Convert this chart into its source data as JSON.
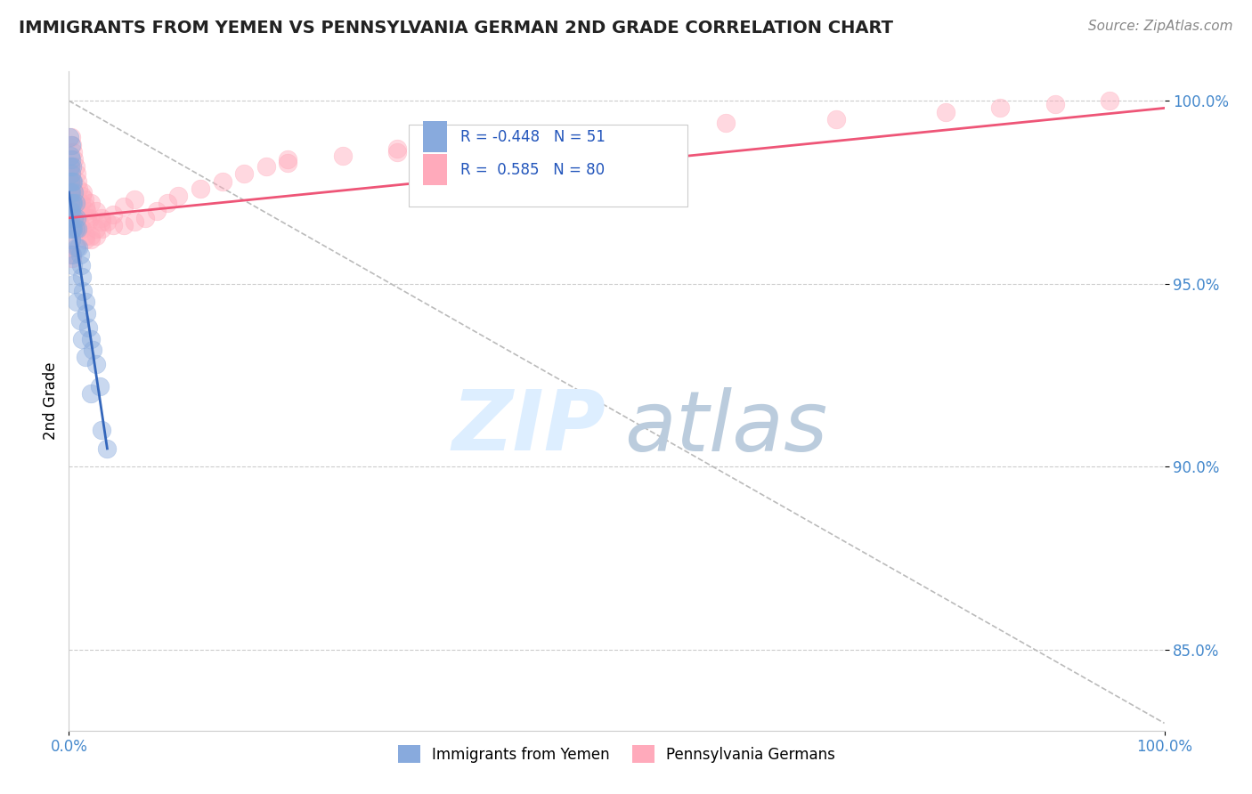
{
  "title": "IMMIGRANTS FROM YEMEN VS PENNSYLVANIA GERMAN 2ND GRADE CORRELATION CHART",
  "source": "Source: ZipAtlas.com",
  "ylabel": "2nd Grade",
  "legend_blue_r": "-0.448",
  "legend_blue_n": "51",
  "legend_pink_r": "0.585",
  "legend_pink_n": "80",
  "blue_scatter_x": [
    0.0005,
    0.001,
    0.001,
    0.001,
    0.001,
    0.001,
    0.001,
    0.001,
    0.002,
    0.002,
    0.002,
    0.002,
    0.002,
    0.002,
    0.003,
    0.003,
    0.003,
    0.003,
    0.004,
    0.004,
    0.004,
    0.005,
    0.005,
    0.006,
    0.006,
    0.007,
    0.007,
    0.008,
    0.009,
    0.01,
    0.011,
    0.012,
    0.013,
    0.015,
    0.016,
    0.018,
    0.02,
    0.022,
    0.025,
    0.028,
    0.002,
    0.003,
    0.004,
    0.005,
    0.007,
    0.01,
    0.012,
    0.015,
    0.02,
    0.03,
    0.035
  ],
  "blue_scatter_y": [
    0.99,
    0.985,
    0.982,
    0.978,
    0.975,
    0.972,
    0.97,
    0.968,
    0.988,
    0.984,
    0.98,
    0.975,
    0.97,
    0.965,
    0.982,
    0.978,
    0.972,
    0.965,
    0.978,
    0.972,
    0.965,
    0.975,
    0.968,
    0.972,
    0.965,
    0.968,
    0.96,
    0.965,
    0.96,
    0.958,
    0.955,
    0.952,
    0.948,
    0.945,
    0.942,
    0.938,
    0.935,
    0.932,
    0.928,
    0.922,
    0.962,
    0.958,
    0.955,
    0.95,
    0.945,
    0.94,
    0.935,
    0.93,
    0.92,
    0.91,
    0.905
  ],
  "pink_scatter_x": [
    0.001,
    0.002,
    0.003,
    0.004,
    0.005,
    0.006,
    0.007,
    0.008,
    0.009,
    0.01,
    0.011,
    0.012,
    0.013,
    0.014,
    0.015,
    0.016,
    0.017,
    0.018,
    0.019,
    0.02,
    0.025,
    0.03,
    0.035,
    0.04,
    0.05,
    0.06,
    0.07,
    0.08,
    0.09,
    0.1,
    0.12,
    0.14,
    0.16,
    0.18,
    0.2,
    0.25,
    0.3,
    0.35,
    0.001,
    0.002,
    0.003,
    0.004,
    0.005,
    0.006,
    0.007,
    0.008,
    0.01,
    0.012,
    0.015,
    0.02,
    0.025,
    0.03,
    0.002,
    0.003,
    0.004,
    0.005,
    0.006,
    0.007,
    0.008,
    0.009,
    0.6,
    0.7,
    0.8,
    0.85,
    0.9,
    0.95,
    0.001,
    0.002,
    0.003,
    0.015,
    0.02,
    0.025,
    0.03,
    0.04,
    0.05,
    0.06,
    0.2,
    0.3,
    0.4,
    0.5
  ],
  "pink_scatter_y": [
    0.978,
    0.975,
    0.973,
    0.971,
    0.97,
    0.968,
    0.967,
    0.968,
    0.969,
    0.97,
    0.972,
    0.974,
    0.975,
    0.973,
    0.971,
    0.97,
    0.968,
    0.967,
    0.968,
    0.972,
    0.97,
    0.968,
    0.967,
    0.966,
    0.966,
    0.967,
    0.968,
    0.97,
    0.972,
    0.974,
    0.976,
    0.978,
    0.98,
    0.982,
    0.983,
    0.985,
    0.987,
    0.988,
    0.982,
    0.98,
    0.978,
    0.976,
    0.974,
    0.972,
    0.97,
    0.968,
    0.966,
    0.965,
    0.963,
    0.962,
    0.963,
    0.965,
    0.99,
    0.988,
    0.986,
    0.984,
    0.982,
    0.98,
    0.978,
    0.976,
    0.994,
    0.995,
    0.997,
    0.998,
    0.999,
    1.0,
    0.96,
    0.958,
    0.957,
    0.962,
    0.963,
    0.965,
    0.967,
    0.969,
    0.971,
    0.973,
    0.984,
    0.986,
    0.988,
    0.99
  ],
  "blue_line_x": [
    0.0,
    0.035
  ],
  "blue_line_y": [
    0.975,
    0.905
  ],
  "pink_line_x": [
    0.0,
    1.0
  ],
  "pink_line_y": [
    0.968,
    0.998
  ],
  "dashed_line_x": [
    0.0,
    1.0
  ],
  "dashed_line_y": [
    1.0,
    0.83
  ],
  "blue_color": "#88AADD",
  "pink_color": "#FFAABB",
  "blue_line_color": "#3366BB",
  "pink_line_color": "#EE5577",
  "dashed_color": "#BBBBBB",
  "xmin": 0.0,
  "xmax": 1.0,
  "ymin": 0.828,
  "ymax": 1.008,
  "ytick_values": [
    1.0,
    0.95,
    0.9,
    0.85
  ],
  "ytick_labels": [
    "100.0%",
    "95.0%",
    "90.0%",
    "85.0%"
  ],
  "title_fontsize": 14,
  "tick_fontsize": 12,
  "ylabel_fontsize": 12,
  "source_fontsize": 11
}
